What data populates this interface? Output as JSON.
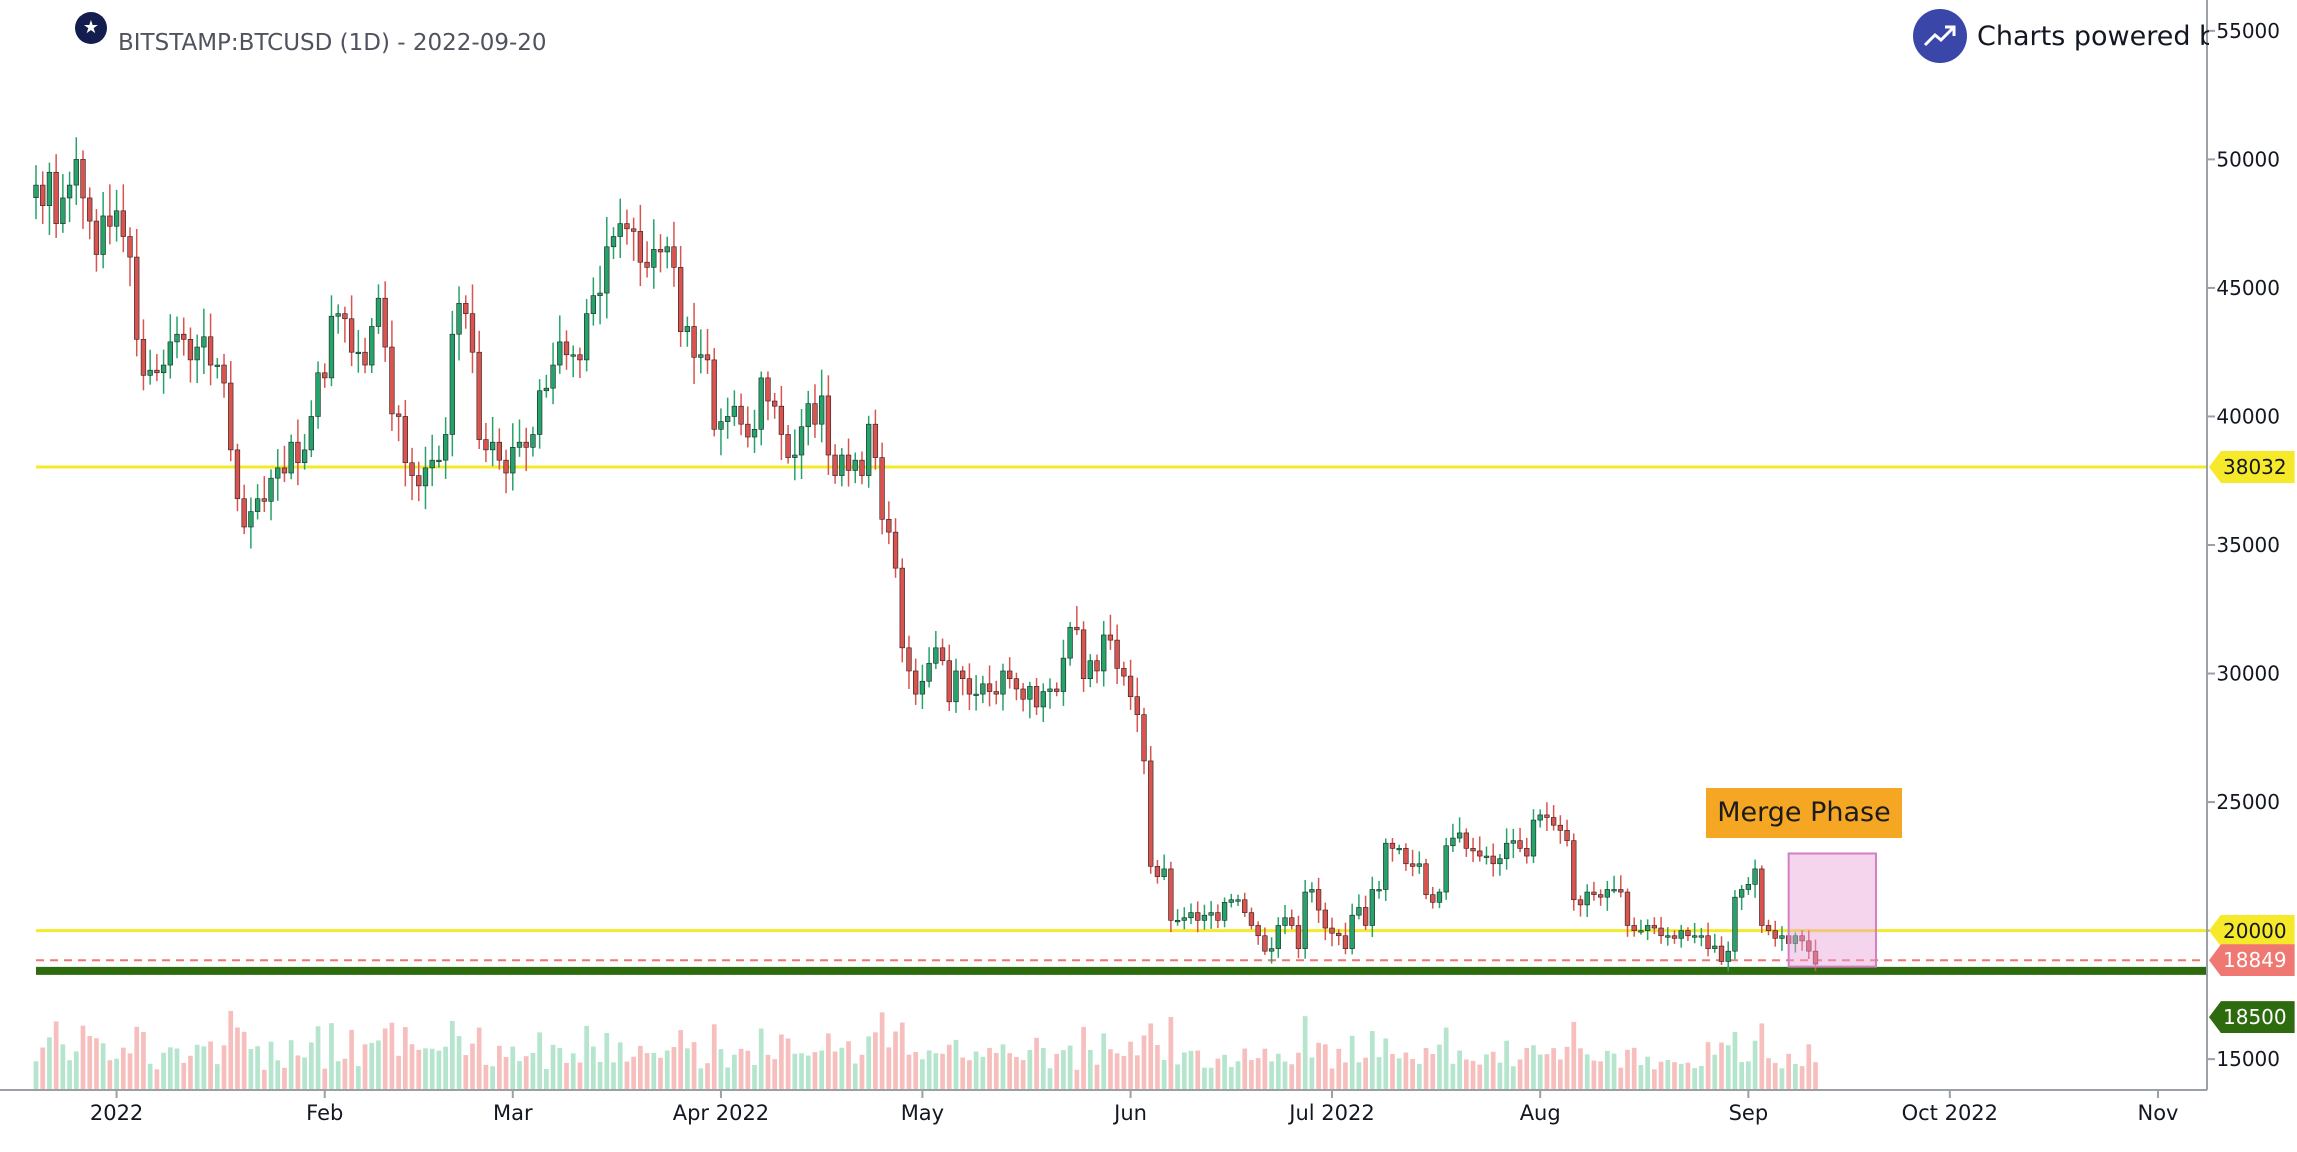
{
  "header": {
    "title": "BITSTAMP:BTCUSD (1D) - 2022-09-20",
    "brand": "Charts powered by GoCharting"
  },
  "annotation": {
    "label": "Merge Phase",
    "color": "#f5a623",
    "box": {
      "x_start": "2022-09-07",
      "x_end": "2022-09-20",
      "y_low": 18600,
      "y_high": 23000,
      "color": "#e8a0d8"
    }
  },
  "levels": [
    {
      "value": 38032,
      "label": "38032",
      "color": "#f5e92a",
      "line": "solid"
    },
    {
      "value": 20000,
      "label": "20000",
      "color": "#f5e92a",
      "line": "solid"
    },
    {
      "value": 18849,
      "label": "18849",
      "color": "#f07872",
      "line": "dashed"
    },
    {
      "value": 18500,
      "label": "18500",
      "color": "#2e6b0f",
      "line": "thick"
    }
  ],
  "chart_data": {
    "type": "candlestick",
    "y_axis": {
      "ylim": [
        14500,
        55500
      ],
      "ticks": [
        15000,
        20000,
        25000,
        30000,
        35000,
        40000,
        45000,
        50000,
        55000
      ],
      "position": "right"
    },
    "x_axis": {
      "range": [
        "2021-12-20",
        "2022-11-08"
      ],
      "ticks": [
        {
          "date": "2022-01-01",
          "label": "2022"
        },
        {
          "date": "2022-02-01",
          "label": "Feb"
        },
        {
          "date": "2022-03-01",
          "label": "Mar"
        },
        {
          "date": "2022-04-01",
          "label": "Apr 2022"
        },
        {
          "date": "2022-05-01",
          "label": "May"
        },
        {
          "date": "2022-06-01",
          "label": "Jun"
        },
        {
          "date": "2022-07-01",
          "label": "Jul 2022"
        },
        {
          "date": "2022-08-01",
          "label": "Aug"
        },
        {
          "date": "2022-09-01",
          "label": "Sep"
        },
        {
          "date": "2022-10-01",
          "label": "Oct 2022"
        },
        {
          "date": "2022-11-01",
          "label": "Nov"
        }
      ]
    },
    "up_color": "#26a36b",
    "down_color": "#d9534f",
    "start_date": "2021-12-20",
    "closes": [
      49000,
      48200,
      49500,
      47500,
      48500,
      49000,
      50000,
      48500,
      47600,
      46300,
      47800,
      47400,
      48000,
      47000,
      46200,
      43000,
      41600,
      41800,
      41700,
      42000,
      42900,
      43200,
      43000,
      42200,
      42700,
      43100,
      42000,
      42000,
      41300,
      38700,
      36800,
      35700,
      36300,
      36800,
      36700,
      37600,
      38000,
      37800,
      39000,
      38200,
      38700,
      40000,
      41700,
      41500,
      43900,
      44000,
      43800,
      42500,
      42500,
      42000,
      43500,
      44600,
      42700,
      40100,
      40000,
      38200,
      37700,
      37300,
      38000,
      38300,
      38300,
      39300,
      43200,
      44400,
      44000,
      42500,
      39100,
      38700,
      39000,
      38300,
      37800,
      38800,
      39000,
      38800,
      39300,
      41000,
      41100,
      42000,
      42900,
      42400,
      42400,
      42200,
      44000,
      44700,
      44800,
      46600,
      47000,
      47500,
      47300,
      47200,
      46000,
      45800,
      46500,
      46400,
      46600,
      45800,
      43300,
      43500,
      42300,
      42400,
      42200,
      39500,
      39800,
      40000,
      40400,
      39700,
      39200,
      39500,
      41500,
      40600,
      40400,
      39300,
      38400,
      38500,
      39600,
      40500,
      39700,
      40800,
      38500,
      37700,
      38500,
      37900,
      38300,
      37700,
      39700,
      38400,
      36000,
      35500,
      34100,
      31000,
      30100,
      29200,
      29700,
      30400,
      31000,
      30500,
      28900,
      30100,
      29800,
      29200,
      29200,
      29600,
      29300,
      29200,
      30100,
      29800,
      29400,
      29000,
      29500,
      28700,
      29300,
      29400,
      29300,
      30600,
      31800,
      31700,
      29800,
      30500,
      30100,
      31500,
      31300,
      30200,
      29900,
      29100,
      28400,
      26600,
      22500,
      22100,
      22400,
      20400,
      20400,
      20500,
      20700,
      20400,
      20600,
      20700,
      20400,
      21100,
      21200,
      21200,
      20700,
      20200,
      19800,
      19200,
      19300,
      20200,
      20500,
      20200,
      19300,
      21500,
      21600,
      20800,
      20100,
      19900,
      19800,
      19300,
      20600,
      20900,
      20200,
      21600,
      21600,
      23400,
      23200,
      23200,
      22600,
      22500,
      22600,
      21400,
      21100,
      21500,
      23300,
      23600,
      23800,
      23200,
      23100,
      22900,
      22900,
      22600,
      22800,
      23400,
      23500,
      23200,
      22900,
      24300,
      24500,
      24400,
      24100,
      23900,
      23500,
      21200,
      21000,
      21500,
      21400,
      21300,
      21600,
      21600,
      21500,
      20200,
      20000,
      20000,
      20200,
      20100,
      19800,
      19800,
      19700,
      20000,
      19800,
      19800,
      19800,
      19300,
      19400,
      18800,
      19200,
      21300,
      21600,
      21800,
      22400,
      20200,
      20000,
      19700,
      19800,
      19500,
      19800,
      19600,
      19200,
      18700
    ],
    "volume_note": "volume histogram bars along the bottom, colored by candle direction"
  }
}
